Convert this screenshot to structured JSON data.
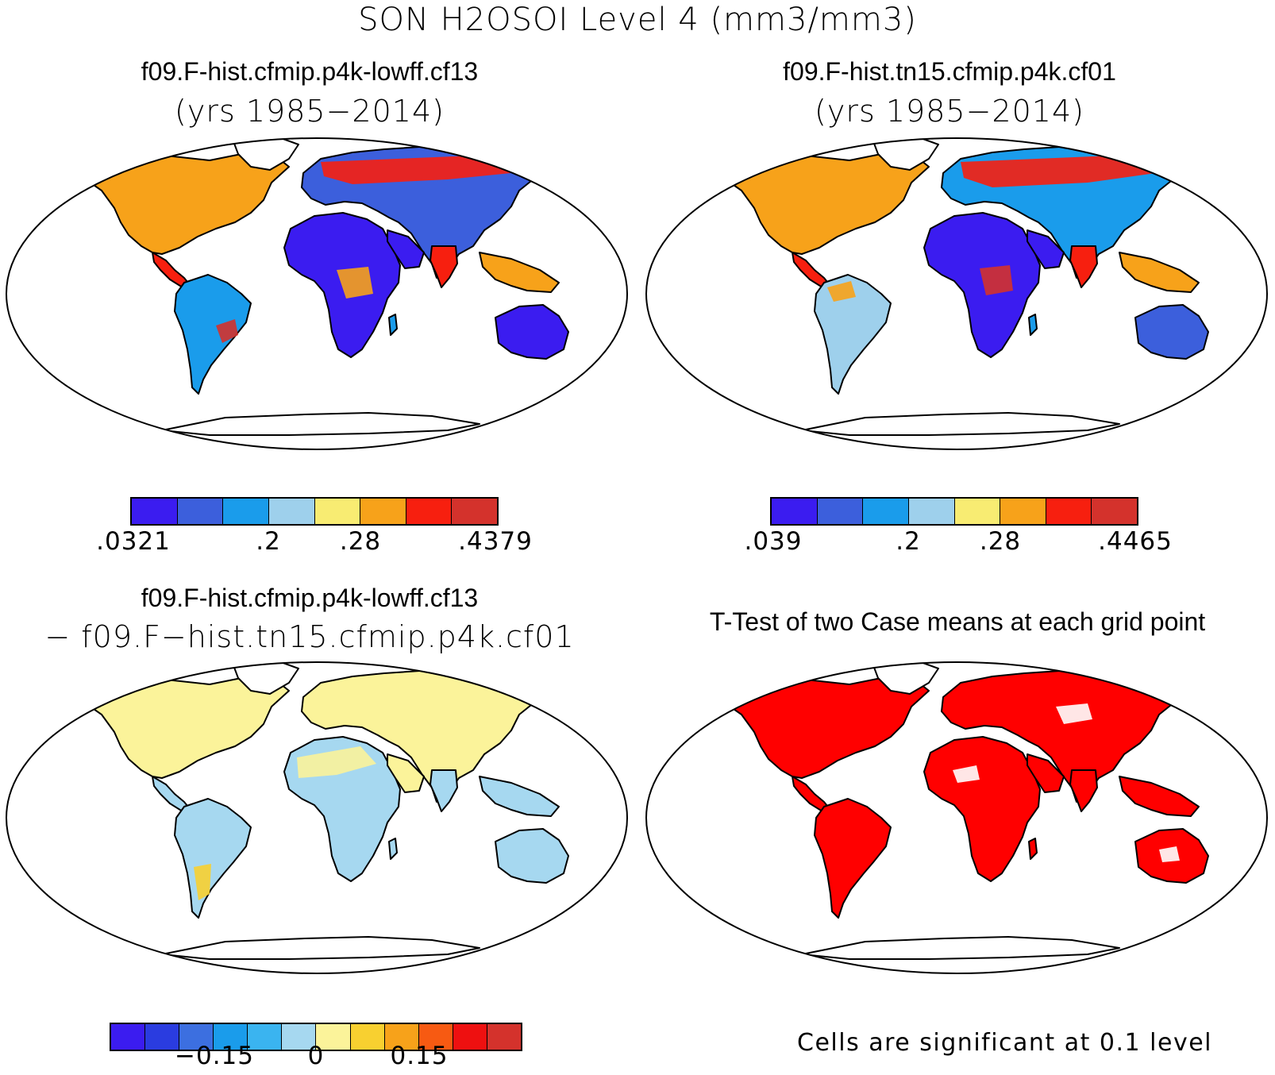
{
  "figure": {
    "main_title": "SON H2OSOI Level 4 (mm3/mm3)"
  },
  "panels": {
    "top_left": {
      "title": "f09.F-hist.cfmip.p4k-lowff.cf13",
      "subtitle": "(yrs 1985−2014)",
      "colorbar": {
        "colors": [
          "#3b1cf0",
          "#3c5fdc",
          "#1a9ceb",
          "#9ed0ec",
          "#f8ec72",
          "#f7a21a",
          "#f71f0f",
          "#d4322c"
        ],
        "tick_labels": [
          ".0321",
          ".2",
          ".28",
          ".4379"
        ]
      }
    },
    "top_right": {
      "title": "f09.F-hist.tn15.cfmip.p4k.cf01",
      "subtitle": "(yrs 1985−2014)",
      "colorbar": {
        "colors": [
          "#3b1cf0",
          "#3c5fdc",
          "#1a9ceb",
          "#9ed0ec",
          "#f8ec72",
          "#f7a21a",
          "#f71f0f",
          "#d4322c"
        ],
        "tick_labels": [
          ".039",
          ".2",
          ".28",
          ".4465"
        ]
      }
    },
    "bottom_left": {
      "title": "f09.F-hist.cfmip.p4k-lowff.cf13",
      "subtitle": "− f09.F−hist.tn15.cfmip.p4k.cf01",
      "colorbar": {
        "colors": [
          "#3b1cf0",
          "#2a3ce0",
          "#3c6fe0",
          "#1a9ceb",
          "#3ab4f0",
          "#a6d8f0",
          "#fbf39a",
          "#f8d030",
          "#f7a21a",
          "#f75a12",
          "#ee1010",
          "#d4322c"
        ],
        "tick_labels": [
          "−0.15",
          "0",
          "0.15"
        ]
      }
    },
    "bottom_right": {
      "title": "T-Test of two Case means at each grid point",
      "footnote": "Cells are significant at 0.1 level",
      "significant_color": "#ff0000"
    }
  }
}
